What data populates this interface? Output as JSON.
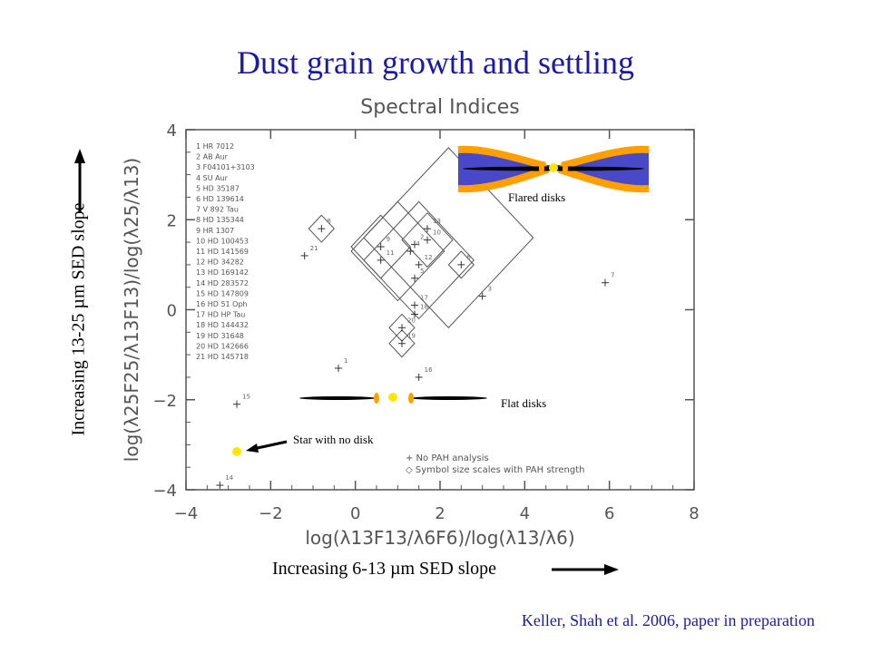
{
  "slide": {
    "title": "Dust grain growth and settling",
    "ylabel": "Increasing 13-25 µm SED slope",
    "xlabel": "Increasing 6-13 µm SED slope",
    "credit": "Keller, Shah et al. 2006, paper in preparation",
    "title_color": "#1a1aa6"
  },
  "chart_data": {
    "type": "scatter",
    "title": "Spectral Indices",
    "xlabel": "log(λ13F13/λ6F6)/log(λ13/λ6)",
    "ylabel": "log(λ25F25/λ13F13)/log(λ25/λ13)",
    "xlim": [
      -4,
      8
    ],
    "ylim": [
      -4,
      4
    ],
    "xticks": [
      -4,
      -2,
      0,
      2,
      4,
      6,
      8
    ],
    "yticks": [
      -4,
      -2,
      0,
      2,
      4
    ],
    "grid": false,
    "legend_entries": [
      {
        "name": "+ No PAH analysis",
        "marker": "plus"
      },
      {
        "name": "◇ Symbol size scales with PAH strength",
        "marker": "diamond"
      }
    ],
    "star_list": [
      "1  HR 7012",
      "2  AB Aur",
      "3  F04101+3103",
      "4  SU Aur",
      "5  HD 35187",
      "6  HD 139614",
      "7  V 892 Tau",
      "8  HD 135344",
      "9  HR 1307",
      "10  HD 100453",
      "11  HD 141569",
      "12  HD 34282",
      "13  HD 169142",
      "14  HD 283572",
      "15  HD 147809",
      "16  HD 51 Oph",
      "17  HD HP Tau",
      "18  HD 144432",
      "19  HD 31648",
      "20  HD 142666",
      "21  HD 145718"
    ],
    "points": [
      {
        "id": "1",
        "x": -0.4,
        "y": -1.3
      },
      {
        "id": "2",
        "x": 1.4,
        "y": 1.45
      },
      {
        "id": "3",
        "x": 3.0,
        "y": 0.3
      },
      {
        "id": "4",
        "x": 1.3,
        "y": 1.3
      },
      {
        "id": "5",
        "x": 1.4,
        "y": 0.7
      },
      {
        "id": "6",
        "x": 2.5,
        "y": 1.0
      },
      {
        "id": "7",
        "x": 5.9,
        "y": 0.6
      },
      {
        "id": "8",
        "x": -0.8,
        "y": 1.8
      },
      {
        "id": "9",
        "x": 0.6,
        "y": 1.4
      },
      {
        "id": "10",
        "x": 1.7,
        "y": 1.55
      },
      {
        "id": "11",
        "x": 0.6,
        "y": 1.1
      },
      {
        "id": "12",
        "x": 1.5,
        "y": 1.0
      },
      {
        "id": "13",
        "x": 1.7,
        "y": 1.8
      },
      {
        "id": "14",
        "x": -3.2,
        "y": -3.9
      },
      {
        "id": "15",
        "x": -2.8,
        "y": -2.1
      },
      {
        "id": "16",
        "x": 1.5,
        "y": -1.5
      },
      {
        "id": "17",
        "x": 1.4,
        "y": 0.1
      },
      {
        "id": "18",
        "x": 1.4,
        "y": -0.1
      },
      {
        "id": "19",
        "x": 1.1,
        "y": -0.75
      },
      {
        "id": "20",
        "x": 1.1,
        "y": -0.4
      },
      {
        "id": "21",
        "x": -1.2,
        "y": 1.2
      }
    ],
    "diamonds": [
      {
        "x": -0.8,
        "y": 1.8,
        "size": 0.3
      },
      {
        "x": 2.5,
        "y": 1.0,
        "size": 0.3
      },
      {
        "x": 1.1,
        "y": -0.4,
        "size": 0.3
      },
      {
        "x": 1.1,
        "y": -0.75,
        "size": 0.3
      },
      {
        "x": 0.6,
        "y": 1.4,
        "size": 0.7
      },
      {
        "x": 1.7,
        "y": 1.55,
        "size": 0.6
      },
      {
        "x": 1.0,
        "y": 1.3,
        "size": 1.1
      },
      {
        "x": 1.5,
        "y": 1.1,
        "size": 1.3
      },
      {
        "x": 2.2,
        "y": 1.6,
        "size": 2.0
      }
    ]
  },
  "annotations": {
    "flared_disks": "Flared disks",
    "flat_disks": "Flat disks",
    "star_no_disk": "Star with no disk"
  },
  "colors": {
    "star": "#ffe600",
    "disk_orange": "#ffa000",
    "disk_blue": "#4848c8",
    "axes": "#555555"
  }
}
